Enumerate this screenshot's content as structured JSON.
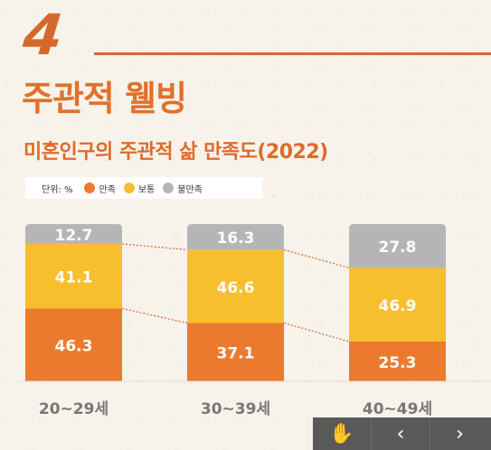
{
  "header": {
    "section_number": "4",
    "section_title": "주관적 웰빙"
  },
  "chart_title": "미혼인구의 주관적 삶 만족도(2022)",
  "legend": {
    "unit": "단위: %",
    "items": [
      {
        "label": "만족",
        "color": "#ec7a2e"
      },
      {
        "label": "보통",
        "color": "#f7be2e"
      },
      {
        "label": "불만족",
        "color": "#b5b5b5"
      }
    ]
  },
  "chart_data": {
    "type": "bar",
    "stacked": true,
    "title": "미혼인구의 주관적 삶 만족도(2022)",
    "unit": "%",
    "categories": [
      "20~29세",
      "30~39세",
      "40~49세"
    ],
    "series": [
      {
        "name": "만족",
        "color": "#ec7a2e",
        "values": [
          46.3,
          37.1,
          25.3
        ]
      },
      {
        "name": "보통",
        "color": "#f7be2e",
        "values": [
          41.1,
          46.6,
          46.9
        ]
      },
      {
        "name": "불만족",
        "color": "#b5b5b5",
        "values": [
          12.7,
          16.3,
          27.8
        ]
      }
    ],
    "ylim": [
      0,
      100
    ],
    "grid": false,
    "legend_position": "top-left",
    "connector_lines": true
  },
  "toolbar": {
    "icons": [
      "hand-icon",
      "chevron-left-icon",
      "chevron-right-icon"
    ],
    "hand_glyph": "✋",
    "prev_glyph": "‹",
    "next_glyph": "›"
  }
}
